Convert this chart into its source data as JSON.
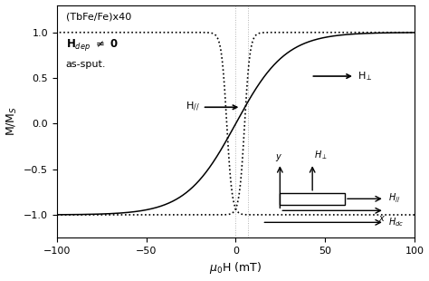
{
  "xlabel": "$\\mu_0$H (mT)",
  "ylabel": "M/M$_S$",
  "xlim": [
    -100,
    100
  ],
  "ylim": [
    -1.25,
    1.3
  ],
  "yticks": [
    -1.0,
    -0.5,
    0.0,
    0.5,
    1.0
  ],
  "xticks": [
    -100,
    -50,
    0,
    50,
    100
  ],
  "annotation_text1": "(TbFe/Fe)x40",
  "annotation_text2": "H$_{dep}$ $\\neq$ 0",
  "annotation_text3": "as-sput.",
  "label_H_perp": "H$_\\perp$",
  "label_H_par": "H$_{//}$",
  "easy_color": "black",
  "hard_color": "black",
  "easy_linestyle": "dotted",
  "hard_linestyle": "solid",
  "background_color": "white",
  "font_size": 8,
  "vline1_x": 0,
  "vline2_x": 7,
  "easy_switch_lower": 3,
  "easy_switch_upper": -3,
  "hard_scale": 28
}
